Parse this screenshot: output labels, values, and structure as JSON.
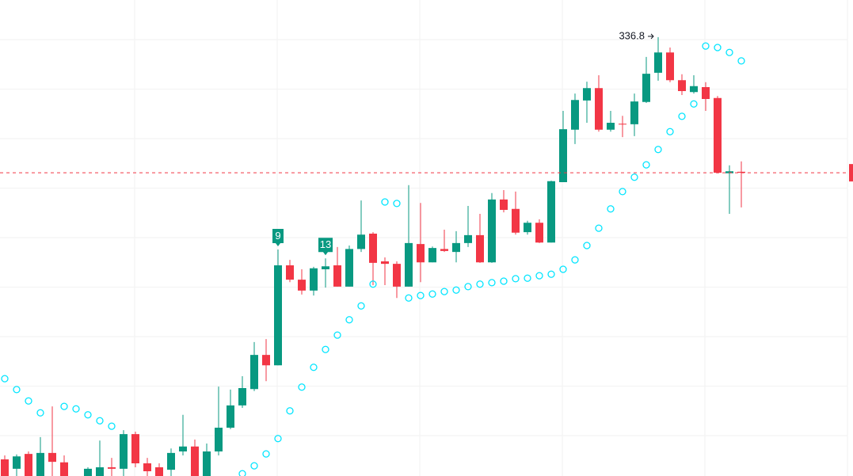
{
  "chart_data": {
    "type": "candlestick",
    "up_color": "#089981",
    "down_color": "#f23645",
    "sar_color": "#00e5ff",
    "last_price_color": "#f23645",
    "ylim": [
      248.14,
      344.3
    ],
    "yticks": [
      256.3,
      266.3,
      276.3,
      286.3,
      296.3,
      306.3,
      316.3,
      326.3,
      336.3
    ],
    "grid": true,
    "open": [
      251.5,
      249.6,
      252.6,
      248.1,
      252.8,
      250.9,
      246.7,
      248.1,
      248.1,
      249.9,
      249.6,
      256.6,
      250.7,
      249.9,
      249.4,
      253.1,
      254.1,
      248.1,
      253.1,
      257.9,
      262.4,
      265.7,
      272.6,
      270.5,
      290.7,
      287.8,
      285.6,
      289.9,
      290.7,
      286.4,
      294.0,
      297.1,
      291.5,
      291.0,
      286.4,
      295.0,
      291.3,
      294.0,
      293.4,
      295.2,
      296.8,
      291.3,
      304.0,
      302.1,
      297.4,
      299.3,
      295.3,
      307.5,
      318.1,
      324.0,
      326.5,
      318.1,
      319.3,
      319.2,
      323.7,
      329.6,
      333.7,
      328.1,
      325.7,
      326.7,
      324.5,
      309.3,
      309.6
    ],
    "high": [
      252.3,
      252.5,
      253.1,
      256.0,
      262.2,
      252.3,
      247.8,
      249.9,
      255.3,
      251.8,
      257.4,
      257.1,
      251.8,
      250.7,
      253.7,
      260.5,
      255.5,
      254.7,
      266.2,
      265.6,
      268.3,
      275.2,
      275.8,
      293.9,
      291.8,
      289.9,
      290.4,
      292.1,
      294.4,
      294.7,
      303.8,
      297.4,
      292.3,
      291.5,
      306.9,
      303.3,
      294.5,
      297.9,
      297.6,
      302.7,
      301.1,
      305.3,
      305.9,
      305.6,
      299.7,
      300.0,
      307.8,
      321.9,
      325.4,
      327.8,
      329.1,
      321.9,
      320.9,
      325.4,
      332.8,
      336.8,
      334.7,
      329.3,
      329.1,
      327.7,
      324.9,
      310.9,
      311.7
    ],
    "low": [
      248.1,
      248.1,
      248.1,
      248.1,
      248.1,
      248.1,
      246.4,
      248.1,
      248.1,
      248.1,
      248.1,
      249.9,
      248.1,
      248.1,
      248.1,
      252.3,
      248.1,
      248.1,
      252.3,
      257.6,
      261.9,
      265.3,
      267.3,
      270.5,
      287.3,
      284.8,
      284.6,
      286.2,
      286.4,
      286.4,
      293.4,
      286.7,
      286.7,
      284.1,
      286.4,
      287.3,
      291.3,
      293.4,
      291.3,
      294.4,
      291.2,
      291.2,
      301.4,
      296.9,
      296.9,
      295.2,
      295.3,
      307.5,
      315.2,
      319.5,
      317.7,
      317.7,
      316.6,
      316.8,
      323.5,
      328.0,
      327.7,
      325.1,
      325.4,
      321.9,
      309.3,
      301.1,
      302.4
    ],
    "close": [
      248.1,
      252.1,
      248.1,
      252.8,
      251.0,
      248.1,
      247.7,
      249.6,
      249.9,
      249.6,
      256.6,
      250.7,
      249.1,
      248.1,
      252.8,
      254.1,
      248.1,
      253.1,
      257.9,
      262.4,
      265.9,
      272.6,
      270.5,
      290.7,
      287.8,
      285.6,
      290.1,
      290.5,
      286.4,
      294.0,
      296.9,
      291.2,
      291.0,
      286.4,
      295.2,
      291.3,
      294.2,
      293.6,
      295.2,
      296.8,
      291.3,
      304.0,
      301.9,
      297.3,
      299.3,
      295.3,
      307.7,
      318.2,
      324.1,
      326.5,
      318.1,
      319.5,
      319.2,
      323.8,
      329.4,
      333.7,
      328.1,
      325.9,
      326.9,
      324.3,
      309.4,
      309.7,
      309.4
    ],
    "sar": [
      267.8,
      265.6,
      263.3,
      260.9,
      null,
      262.2,
      261.7,
      260.5,
      259.3,
      258.2,
      null,
      null,
      null,
      null,
      null,
      null,
      null,
      null,
      null,
      null,
      248.6,
      250.2,
      252.6,
      255.7,
      261.3,
      266.1,
      270.1,
      273.7,
      276.6,
      279.7,
      282.5,
      286.9,
      303.5,
      303.2,
      284.1,
      284.6,
      284.9,
      285.4,
      285.7,
      286.4,
      286.9,
      287.2,
      287.5,
      288.0,
      288.1,
      288.6,
      288.9,
      289.9,
      291.8,
      294.7,
      298.2,
      302.1,
      305.6,
      308.5,
      311.0,
      314.1,
      317.7,
      320.8,
      323.3,
      335.0,
      334.7,
      333.7,
      332.0
    ],
    "signal_labels": [
      null,
      null,
      null,
      null,
      null,
      null,
      null,
      null,
      null,
      null,
      null,
      null,
      null,
      null,
      null,
      null,
      null,
      null,
      null,
      null,
      null,
      null,
      null,
      "9",
      null,
      null,
      null,
      "13",
      null,
      null,
      null,
      null,
      null,
      null,
      null,
      null,
      null,
      null,
      null,
      null,
      null,
      null,
      null,
      null,
      null,
      null,
      null,
      null,
      null,
      null,
      null,
      null,
      null,
      null,
      null,
      null,
      null,
      null,
      null,
      null,
      null,
      null,
      null
    ],
    "max_label": "336.8",
    "last_price": 309.4
  }
}
